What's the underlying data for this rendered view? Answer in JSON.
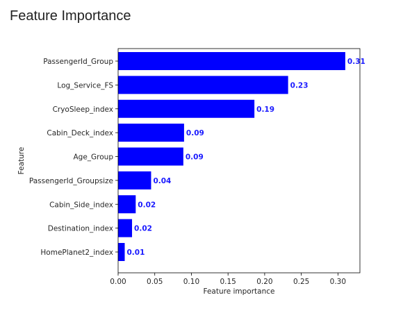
{
  "page": {
    "title": "Feature Importance"
  },
  "chart_data": {
    "type": "bar",
    "orientation": "horizontal",
    "title": "",
    "xlabel": "Feature importance",
    "ylabel": "Feature",
    "xlim": [
      0,
      0.33
    ],
    "x_ticks": [
      0,
      0.05,
      0.1,
      0.15,
      0.2,
      0.25,
      0.3
    ],
    "x_tick_labels": [
      "0.00",
      "0.05",
      "0.10",
      "0.15",
      "0.20",
      "0.25",
      "0.30"
    ],
    "grid": false,
    "legend": "none",
    "bar_color": "#0000ff",
    "label_color": "#1a1aff",
    "categories": [
      "PassengerId_Group",
      "Log_Service_FS",
      "CryoSleep_index",
      "Cabin_Deck_index",
      "Age_Group",
      "PassengerId_Groupsize",
      "Cabin_Side_index",
      "Destination_index",
      "HomePlanet2_index"
    ],
    "values": [
      0.31,
      0.232,
      0.186,
      0.09,
      0.089,
      0.045,
      0.024,
      0.019,
      0.009
    ],
    "value_labels": [
      "0.31",
      "0.23",
      "0.19",
      "0.09",
      "0.09",
      "0.04",
      "0.02",
      "0.02",
      "0.01"
    ]
  }
}
